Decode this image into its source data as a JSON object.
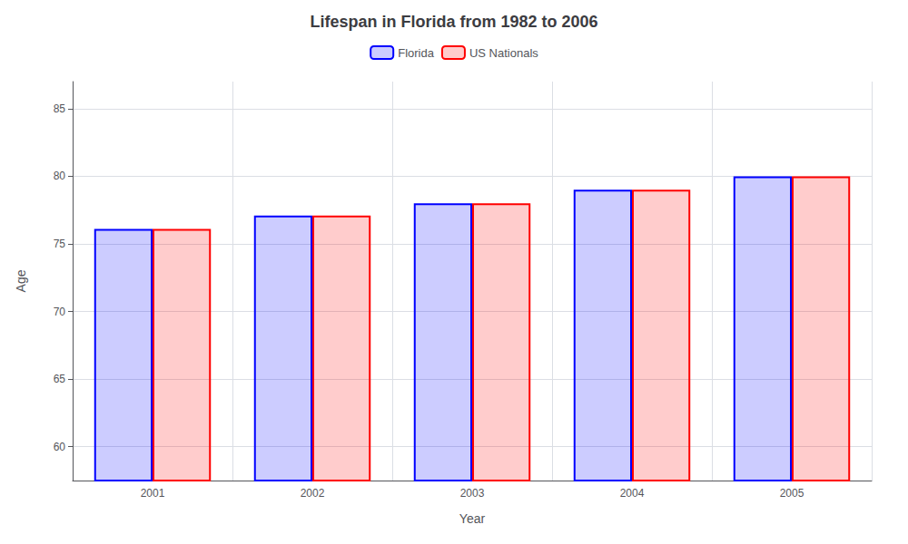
{
  "chart_data": {
    "type": "bar",
    "title": "Lifespan in Florida from 1982 to 2006",
    "xlabel": "Year",
    "ylabel": "Age",
    "categories": [
      "2001",
      "2002",
      "2003",
      "2004",
      "2005"
    ],
    "series": [
      {
        "name": "Florida",
        "color": "#0000ff",
        "values": [
          76.1,
          77.1,
          78.0,
          79.0,
          80.0
        ]
      },
      {
        "name": "US Nationals",
        "color": "#ff0000",
        "values": [
          76.1,
          77.1,
          78.0,
          79.0,
          80.0
        ]
      }
    ],
    "ylim": [
      57.5,
      87
    ],
    "yticks": [
      60,
      65,
      70,
      75,
      80,
      85
    ],
    "grid": true,
    "legend": "top"
  }
}
